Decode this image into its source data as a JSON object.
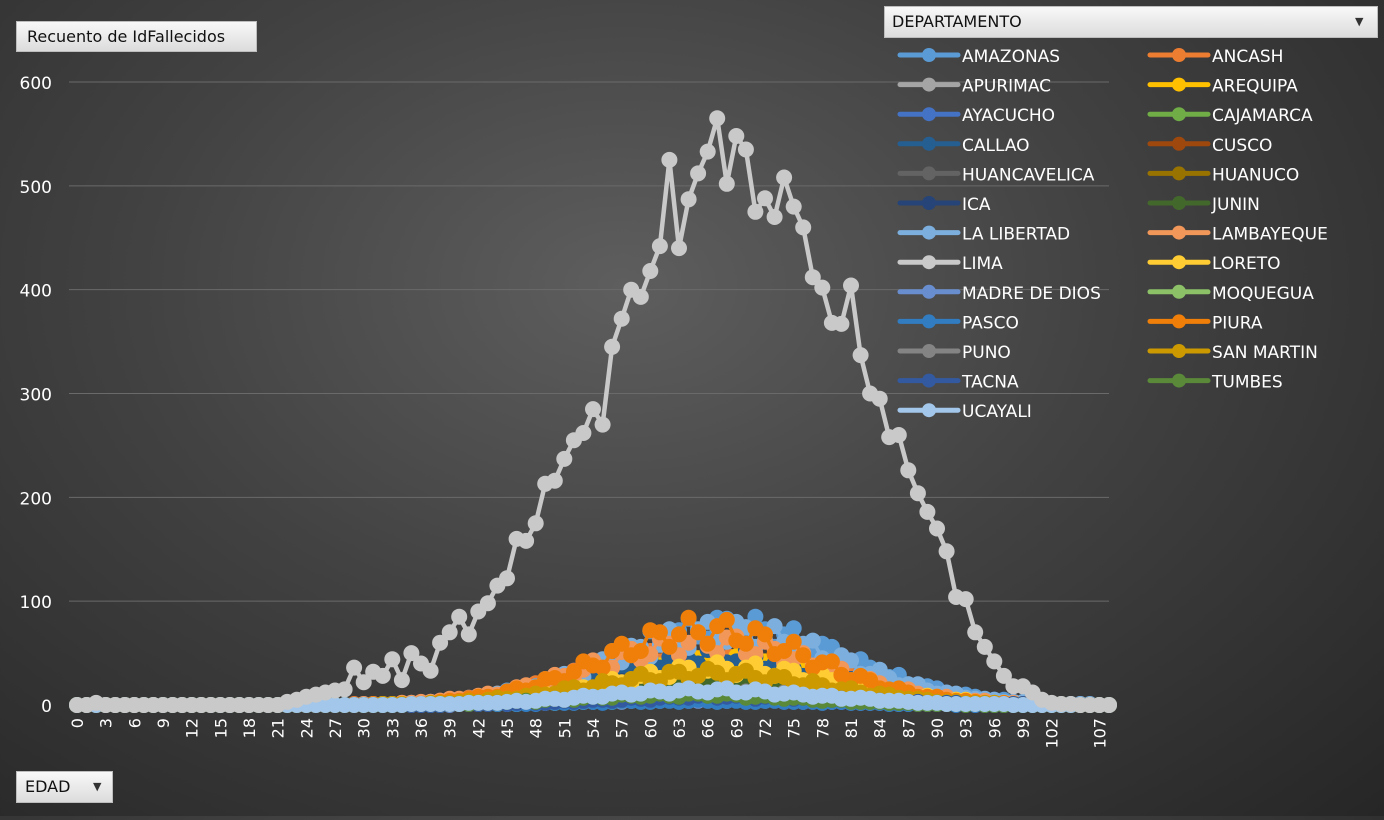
{
  "value_field_label": "Recuento de IdFallecidos",
  "axis_field_label": "EDAD",
  "legend_field_label": "DEPARTAMENTO",
  "dropdown_glyph": "▼",
  "chart_data": {
    "type": "line",
    "title": "",
    "xlabel": "EDAD",
    "ylabel": "Recuento de IdFallecidos",
    "x_range": [
      0,
      108
    ],
    "x_tick_labels": [
      "0",
      "3",
      "6",
      "9",
      "12",
      "15",
      "18",
      "21",
      "24",
      "27",
      "30",
      "33",
      "36",
      "39",
      "42",
      "45",
      "48",
      "51",
      "54",
      "57",
      "60",
      "63",
      "66",
      "69",
      "72",
      "75",
      "78",
      "81",
      "84",
      "87",
      "90",
      "93",
      "96",
      "99",
      "102",
      "107"
    ],
    "ylim": [
      0,
      600
    ],
    "y_ticks": [
      0,
      100,
      200,
      300,
      400,
      500,
      600
    ],
    "grid": true,
    "legend_placement": "top-right",
    "legend_title": "DEPARTAMENTO",
    "series": [
      {
        "name": "AMAZONAS",
        "color": "#5B9BD5",
        "peak": 75,
        "center": 68,
        "spread": 12
      },
      {
        "name": "ANCASH",
        "color": "#ED7D31",
        "peak": 55,
        "center": 66,
        "spread": 12
      },
      {
        "name": "APURIMAC",
        "color": "#A5A5A5",
        "peak": 8,
        "center": 68,
        "spread": 13
      },
      {
        "name": "AREQUIPA",
        "color": "#FFC000",
        "peak": 40,
        "center": 68,
        "spread": 12
      },
      {
        "name": "AYACUCHO",
        "color": "#4472C4",
        "peak": 10,
        "center": 68,
        "spread": 13
      },
      {
        "name": "CAJAMARCA",
        "color": "#70AD47",
        "peak": 14,
        "center": 68,
        "spread": 13
      },
      {
        "name": "CALLAO",
        "color": "#255E91",
        "peak": 48,
        "center": 66,
        "spread": 12
      },
      {
        "name": "CUSCO",
        "color": "#9E480E",
        "peak": 15,
        "center": 66,
        "spread": 13
      },
      {
        "name": "HUANCAVELICA",
        "color": "#636363",
        "peak": 4,
        "center": 66,
        "spread": 14
      },
      {
        "name": "HUANUCO",
        "color": "#997300",
        "peak": 12,
        "center": 68,
        "spread": 13
      },
      {
        "name": "ICA",
        "color": "#264478",
        "peak": 30,
        "center": 66,
        "spread": 12
      },
      {
        "name": "JUNIN",
        "color": "#43682B",
        "peak": 22,
        "center": 68,
        "spread": 13
      },
      {
        "name": "LA LIBERTAD",
        "color": "#7CAFDD",
        "peak": 70,
        "center": 68,
        "spread": 12
      },
      {
        "name": "LAMBAYEQUE",
        "color": "#F1975A",
        "peak": 60,
        "center": 66,
        "spread": 12
      },
      {
        "name": "LIMA",
        "color": "#C9C9C9",
        "values": [
          0,
          0,
          2,
          0,
          0,
          0,
          0,
          0,
          0,
          0,
          0,
          0,
          0,
          0,
          0,
          0,
          0,
          0,
          0,
          0,
          0,
          0,
          3,
          5,
          8,
          10,
          12,
          14,
          15,
          36,
          22,
          32,
          28,
          44,
          24,
          50,
          40,
          33,
          60,
          70,
          85,
          68,
          90,
          98,
          115,
          122,
          160,
          158,
          175,
          213,
          216,
          237,
          255,
          262,
          285,
          270,
          345,
          372,
          400,
          393,
          418,
          442,
          525,
          440,
          487,
          512,
          533,
          565,
          502,
          548,
          535,
          475,
          488,
          470,
          508,
          480,
          460,
          412,
          402,
          368,
          367,
          404,
          337,
          300,
          295,
          258,
          260,
          226,
          204,
          186,
          170,
          148,
          104,
          102,
          70,
          56,
          42,
          28,
          18,
          18,
          12,
          5,
          2,
          1,
          1,
          0,
          0,
          0,
          0
        ]
      },
      {
        "name": "LORETO",
        "color": "#FFCD33",
        "peak": 35,
        "center": 68,
        "spread": 12
      },
      {
        "name": "MADRE DE DIOS",
        "color": "#698ED0",
        "peak": 5,
        "center": 66,
        "spread": 13
      },
      {
        "name": "MOQUEGUA",
        "color": "#8CC168",
        "peak": 6,
        "center": 68,
        "spread": 13
      },
      {
        "name": "PASCO",
        "color": "#327DC2",
        "peak": 4,
        "center": 66,
        "spread": 13
      },
      {
        "name": "PIURA",
        "color": "#F07F09",
        "peak": 72,
        "center": 66,
        "spread": 11
      },
      {
        "name": "PUNO",
        "color": "#848484",
        "peak": 12,
        "center": 68,
        "spread": 13
      },
      {
        "name": "SAN MARTIN",
        "color": "#CC9A00",
        "peak": 30,
        "center": 66,
        "spread": 12
      },
      {
        "name": "TACNA",
        "color": "#335AA1",
        "peak": 8,
        "center": 68,
        "spread": 13
      },
      {
        "name": "TUMBES",
        "color": "#5A8A39",
        "peak": 10,
        "center": 64,
        "spread": 12
      },
      {
        "name": "UCAYALI",
        "color": "#A3C7EA",
        "peak": 14,
        "center": 66,
        "spread": 12
      }
    ]
  }
}
